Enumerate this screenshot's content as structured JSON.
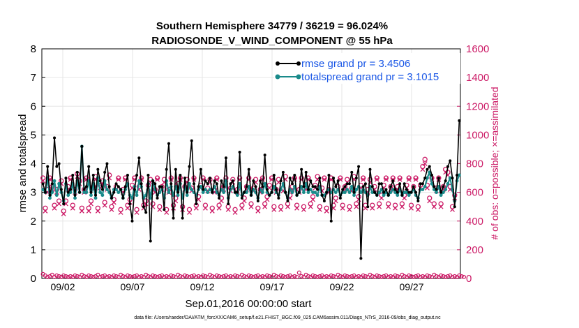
{
  "chart_data": {
    "type": "line",
    "title_lines": [
      "Southern Hemisphere 34779 / 36219 = 96.024%",
      "RADIOSONDE_V_WIND_COMPONENT @ 55 hPa"
    ],
    "xlabel": "Sep.01,2016 00:00:00 start",
    "ylabel_left": "rmse and totalspread",
    "ylabel_right": "# of obs: o=possible; ×=assimilated",
    "footnote": "data file: /Users/raeder/DAI/ATM_forcXX/CAM6_setup/f.e21.FHIST_BGC.f09_025.CAM6assim.011/Diags_NTrS_2016-09/obs_diag_output.nc",
    "xlim": [
      0.5,
      30.5
    ],
    "ylim_left": [
      0,
      8
    ],
    "ylim_right": [
      0,
      1600
    ],
    "yticks_left": [
      "0",
      "1",
      "2",
      "3",
      "4",
      "5",
      "6",
      "7",
      "8"
    ],
    "yticks_right": [
      "0",
      "200",
      "400",
      "600",
      "800",
      "1000",
      "1200",
      "1400",
      "1600"
    ],
    "xtick_values": [
      2,
      7,
      12,
      17,
      22,
      27
    ],
    "xtick_labels": [
      "09/02",
      "09/07",
      "09/12",
      "09/17",
      "09/22",
      "09/27"
    ],
    "colors": {
      "rmse": "#000000",
      "spread": "#1a8a8a",
      "obs": "#cc1a66",
      "legend_text": "#1a57e6"
    },
    "legend": [
      {
        "name": "rmse grand pr = 3.4506"
      },
      {
        "name": "totalspread grand pr = 3.1015"
      }
    ],
    "series": [
      {
        "name": "rmse",
        "values": [
          3.3,
          3.0,
          3.9,
          2.9,
          3.3,
          4.9,
          3.9,
          4.0,
          3.1,
          2.6,
          3.5,
          3.0,
          3.1,
          3.6,
          2.9,
          3.7,
          3.0,
          4.6,
          3.1,
          3.2,
          3.9,
          3.0,
          3.6,
          2.9,
          3.8,
          3.4,
          3.1,
          3.7,
          4.0,
          3.2,
          2.8,
          3.0,
          3.3,
          3.2,
          3.1,
          2.8,
          3.2,
          3.6,
          2.6,
          2.0,
          3.1,
          3.6,
          4.2,
          3.3,
          2.5,
          2.3,
          3.6,
          1.3,
          3.4,
          3.3,
          2.8,
          3.2,
          3.2,
          2.4,
          3.8,
          4.7,
          3.3,
          2.1,
          3.8,
          3.0,
          3.6,
          2.1,
          3.5,
          3.0,
          3.9,
          4.8,
          3.3,
          2.6,
          3.2,
          3.8,
          3.1,
          3.4,
          3.3,
          3.5,
          3.0,
          3.4,
          3.3,
          2.8,
          3.4,
          3.2,
          4.2,
          2.6,
          3.3,
          3.4,
          3.0,
          3.0,
          4.4,
          2.8,
          3.0,
          3.2,
          3.8,
          2.9,
          3.4,
          3.2,
          2.7,
          3.4,
          3.2,
          4.3,
          3.1,
          2.9,
          3.0,
          3.6,
          3.1,
          2.8,
          3.4,
          3.7,
          3.0,
          2.7,
          3.5,
          3.3,
          3.6,
          2.9,
          3.0,
          3.8,
          3.2,
          3.7,
          3.1,
          3.4,
          3.2,
          3.2,
          3.1,
          3.5,
          2.9,
          2.7,
          3.0,
          3.6,
          2.0,
          3.5,
          3.2,
          3.4,
          2.8,
          3.1,
          3.2,
          3.3,
          3.3,
          3.7,
          3.0,
          3.5,
          3.9,
          0.7,
          3.2,
          3.3,
          2.5,
          3.8,
          3.2,
          3.0,
          2.9,
          3.3,
          3.3,
          3.0,
          3.1,
          2.9,
          3.2,
          3.4,
          3.1,
          3.0,
          3.3,
          2.9,
          3.3,
          3.1,
          3.0,
          3.0,
          3.2,
          3.0,
          2.7,
          3.3,
          3.3,
          3.5,
          3.8,
          3.9,
          3.6,
          3.2,
          3.1,
          3.5,
          3.0,
          3.2,
          3.4,
          3.9,
          4.1,
          3.5,
          2.5,
          3.6,
          5.5
        ]
      },
      {
        "name": "totalspread",
        "values": [
          3.1,
          3.0,
          3.5,
          2.8,
          3.0,
          3.4,
          2.9,
          3.3,
          3.0,
          2.7,
          3.3,
          2.9,
          3.0,
          3.3,
          2.8,
          3.4,
          3.0,
          4.6,
          3.0,
          3.0,
          3.4,
          2.9,
          3.3,
          2.8,
          3.5,
          3.0,
          2.9,
          3.4,
          3.1,
          3.0,
          2.8,
          3.1,
          3.1,
          3.0,
          3.1,
          2.8,
          3.1,
          3.3,
          2.9,
          2.8,
          3.2,
          2.9,
          3.4,
          3.2,
          2.8,
          2.9,
          3.3,
          2.8,
          3.4,
          3.1,
          2.9,
          3.0,
          3.1,
          2.8,
          3.4,
          3.0,
          3.2,
          2.9,
          3.2,
          2.9,
          3.3,
          2.8,
          3.2,
          2.9,
          3.3,
          3.1,
          3.0,
          2.9,
          3.1,
          3.2,
          3.0,
          3.1,
          3.0,
          3.1,
          3.0,
          3.2,
          3.0,
          2.9,
          3.1,
          3.0,
          3.4,
          2.8,
          3.1,
          3.2,
          3.0,
          2.9,
          3.3,
          2.9,
          3.0,
          3.0,
          3.2,
          2.9,
          3.1,
          3.0,
          2.8,
          3.1,
          3.0,
          3.3,
          3.0,
          2.9,
          3.0,
          3.2,
          3.0,
          2.9,
          3.1,
          3.3,
          3.0,
          2.8,
          3.1,
          3.0,
          3.2,
          2.9,
          3.0,
          3.2,
          3.0,
          3.3,
          3.0,
          3.1,
          3.0,
          3.0,
          2.9,
          3.2,
          2.9,
          2.9,
          3.0,
          3.1,
          3.0,
          3.1,
          3.0,
          3.1,
          2.9,
          3.0,
          3.0,
          3.1,
          3.0,
          3.2,
          2.9,
          3.1,
          3.2,
          3.0,
          3.1,
          3.0,
          2.9,
          3.2,
          3.0,
          3.0,
          2.9,
          3.0,
          3.1,
          2.9,
          3.0,
          2.9,
          3.0,
          3.1,
          3.0,
          2.9,
          3.1,
          2.9,
          3.0,
          3.0,
          2.9,
          3.0,
          3.1,
          2.9,
          2.8,
          3.1,
          3.1,
          3.2,
          3.5,
          3.7,
          3.3,
          3.1,
          3.0,
          3.2,
          2.9,
          3.0,
          3.1,
          3.3,
          3.5,
          3.1,
          2.7,
          3.4,
          3.6
        ]
      },
      {
        "name": "obs_possible",
        "values": [
          700,
          490,
          620,
          700,
          640,
          510,
          620,
          540,
          680,
          470,
          540,
          640,
          700,
          510,
          620,
          730,
          680,
          490,
          620,
          700,
          490,
          540,
          640,
          710,
          490,
          650,
          680,
          530,
          640,
          720,
          500,
          550,
          640,
          700,
          480,
          620,
          700,
          510,
          550,
          650,
          700,
          480,
          640,
          700,
          510,
          540,
          650,
          690,
          520,
          620,
          700,
          500,
          640,
          690,
          480,
          620,
          700,
          510,
          560,
          660,
          700,
          500,
          640,
          690,
          480,
          630,
          700,
          510,
          570,
          650,
          700,
          510,
          630,
          690,
          490,
          620,
          700,
          510,
          560,
          640,
          700,
          500,
          630,
          690,
          480,
          620,
          700,
          510,
          560,
          640,
          700,
          520,
          630,
          690,
          490,
          620,
          700,
          520,
          570,
          650,
          700,
          500,
          620,
          690,
          500,
          630,
          710,
          520,
          580,
          640,
          700,
          510,
          620,
          700,
          500,
          640,
          700,
          520,
          570,
          650,
          710,
          500,
          630,
          700,
          490,
          620,
          700,
          510,
          560,
          640,
          700,
          510,
          640,
          690,
          500,
          630,
          710,
          520,
          570,
          650,
          700,
          510,
          620,
          690,
          510,
          640,
          700,
          520,
          580,
          650,
          700,
          520,
          640,
          700,
          510,
          640,
          700,
          520,
          580,
          650,
          700,
          510,
          640,
          700,
          500,
          650,
          780,
          830,
          650,
          560,
          700,
          520,
          630,
          700,
          520,
          640,
          760,
          740,
          640,
          500,
          580
        ]
      },
      {
        "name": "obs_assimilated",
        "values": [
          680,
          470,
          600,
          690,
          620,
          490,
          600,
          520,
          660,
          450,
          520,
          620,
          690,
          490,
          600,
          710,
          660,
          470,
          600,
          690,
          470,
          520,
          620,
          690,
          470,
          630,
          660,
          510,
          620,
          700,
          480,
          530,
          620,
          690,
          460,
          600,
          690,
          490,
          530,
          630,
          690,
          460,
          620,
          690,
          490,
          520,
          630,
          670,
          500,
          600,
          690,
          480,
          620,
          670,
          460,
          600,
          690,
          490,
          540,
          640,
          690,
          480,
          620,
          670,
          460,
          610,
          690,
          490,
          550,
          630,
          690,
          490,
          610,
          670,
          470,
          600,
          690,
          490,
          540,
          620,
          690,
          480,
          610,
          670,
          460,
          600,
          690,
          490,
          540,
          620,
          690,
          500,
          610,
          670,
          470,
          600,
          690,
          500,
          550,
          630,
          690,
          480,
          600,
          670,
          480,
          610,
          690,
          500,
          560,
          620,
          690,
          490,
          600,
          690,
          480,
          620,
          690,
          500,
          550,
          630,
          690,
          480,
          610,
          690,
          470,
          600,
          690,
          490,
          540,
          620,
          690,
          490,
          620,
          670,
          480,
          610,
          690,
          500,
          550,
          630,
          690,
          490,
          600,
          670,
          490,
          620,
          690,
          500,
          560,
          630,
          690,
          500,
          620,
          690,
          490,
          620,
          690,
          500,
          560,
          630,
          690,
          490,
          620,
          690,
          480,
          630,
          760,
          800,
          630,
          540,
          690,
          500,
          610,
          690,
          500,
          620,
          740,
          720,
          620,
          480,
          560
        ]
      },
      {
        "name": "obs_rejected",
        "values": [
          30,
          20,
          10,
          15,
          25,
          10,
          20,
          15,
          10,
          20,
          15,
          10,
          15,
          10,
          20,
          15,
          10,
          25,
          15,
          10,
          20,
          15,
          10,
          15,
          25,
          10,
          15,
          20,
          10,
          15,
          10,
          20,
          15,
          10,
          25,
          15,
          10,
          20,
          15,
          10,
          15,
          20,
          10,
          15,
          10,
          25,
          15,
          10,
          20,
          15,
          10,
          15,
          20,
          10,
          15,
          10,
          20,
          15,
          10,
          25,
          15,
          10,
          20,
          15,
          10,
          15,
          20,
          10,
          15,
          10,
          20,
          15,
          10,
          25,
          15,
          10,
          20,
          15,
          10,
          15,
          20,
          10,
          15,
          10,
          20,
          15,
          10,
          25,
          15,
          10,
          20,
          15,
          10,
          15,
          20,
          10,
          15,
          10,
          20,
          15,
          10,
          25,
          15,
          10,
          20,
          15,
          10,
          15,
          20,
          10,
          15,
          10,
          40,
          15,
          10,
          25,
          15,
          10,
          20,
          15,
          10,
          15,
          20,
          10,
          15,
          10,
          20,
          15,
          10,
          25,
          15,
          10,
          20,
          15,
          10,
          15,
          20,
          10,
          15,
          10,
          20,
          15,
          10,
          25,
          15,
          10,
          20,
          15,
          10,
          15,
          20,
          10,
          15,
          10,
          20,
          15,
          10,
          25,
          15,
          10,
          20,
          15,
          10,
          15,
          20,
          10,
          15,
          10,
          20,
          15,
          10,
          25,
          15,
          10,
          20,
          15,
          10,
          15,
          20,
          10,
          15,
          10,
          20,
          15,
          10
        ]
      }
    ]
  }
}
